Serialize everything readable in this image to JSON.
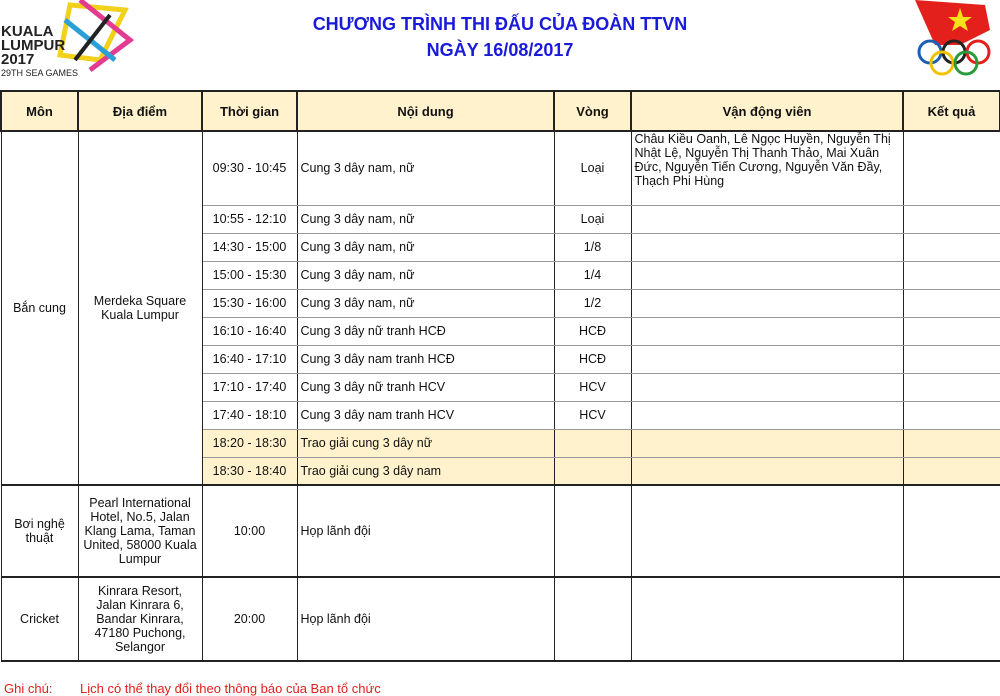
{
  "header": {
    "title": "CHƯƠNG TRÌNH THI ĐẤU CỦA ĐOÀN TTVN",
    "date": "NGÀY 16/08/2017",
    "logo_left": "KUALA LUMPUR 2017 29TH SEA GAMES",
    "logo_right": "Vietnam Olympic Committee"
  },
  "columns": [
    "Môn",
    "Địa điểm",
    "Thời gian",
    "Nội dung",
    "Vòng",
    "Vận động viên",
    "Kết quả"
  ],
  "groups": [
    {
      "sport": "Bắn cung",
      "venue": "Merdeka Square Kuala Lumpur",
      "rows": [
        {
          "time": "09:30 - 10:45",
          "content": "Cung 3 dây nam, nữ",
          "round": "Loại",
          "athletes": "Châu Kiều Oanh, Lê Ngọc Huyền, Nguyễn Thị Nhật Lệ, Nguyễn Thị Thanh Thảo, Mai Xuân Đức, Nguyễn Tiến Cương, Nguyễn Văn Đầy, Thạch Phi Hùng",
          "result": ""
        },
        {
          "time": "10:55 - 12:10",
          "content": "Cung 3 dây nam, nữ",
          "round": "Loại",
          "athletes": "",
          "result": ""
        },
        {
          "time": "14:30 - 15:00",
          "content": "Cung 3 dây nam, nữ",
          "round": "1/8",
          "athletes": "",
          "result": ""
        },
        {
          "time": "15:00 - 15:30",
          "content": "Cung 3 dây nam, nữ",
          "round": "1/4",
          "athletes": "",
          "result": ""
        },
        {
          "time": "15:30 - 16:00",
          "content": "Cung 3 dây nam, nữ",
          "round": "1/2",
          "athletes": "",
          "result": ""
        },
        {
          "time": "16:10 - 16:40",
          "content": "Cung 3 dây nữ tranh HCĐ",
          "round": "HCĐ",
          "athletes": "",
          "result": ""
        },
        {
          "time": "16:40 - 17:10",
          "content": "Cung 3 dây nam tranh HCĐ",
          "round": "HCĐ",
          "athletes": "",
          "result": ""
        },
        {
          "time": "17:10 - 17:40",
          "content": "Cung 3 dây nữ tranh HCV",
          "round": "HCV",
          "athletes": "",
          "result": ""
        },
        {
          "time": "17:40 - 18:10",
          "content": "Cung 3 dây nam tranh HCV",
          "round": "HCV",
          "athletes": "",
          "result": ""
        },
        {
          "time": "18:20 - 18:30",
          "content": "Trao giải cung 3 dây nữ",
          "round": "",
          "athletes": "",
          "result": "",
          "highlight": true
        },
        {
          "time": "18:30 - 18:40",
          "content": "Trao giải cung 3 dây nam",
          "round": "",
          "athletes": "",
          "result": "",
          "highlight": true
        }
      ]
    },
    {
      "sport": "Bơi nghệ thuật",
      "venue": "Pearl International Hotel, No.5, Jalan Klang Lama, Taman United, 58000 Kuala Lumpur",
      "rows": [
        {
          "time": "10:00",
          "content": "Họp lãnh đội",
          "round": "",
          "athletes": "",
          "result": ""
        }
      ]
    },
    {
      "sport": "Cricket",
      "venue": "Kinrara Resort, Jalan Kinrara 6, Bandar Kinrara, 47180 Puchong, Selangor",
      "rows": [
        {
          "time": "20:00",
          "content": "Họp lãnh đội",
          "round": "",
          "athletes": "",
          "result": ""
        }
      ]
    }
  ],
  "note": {
    "label": "Ghi chú:",
    "text": "Lịch có thể thay đổi theo thông báo của Ban tổ chức"
  },
  "colors": {
    "title": "#1a1adb",
    "header_bg": "#fff2cc",
    "note": "#e0201c"
  }
}
